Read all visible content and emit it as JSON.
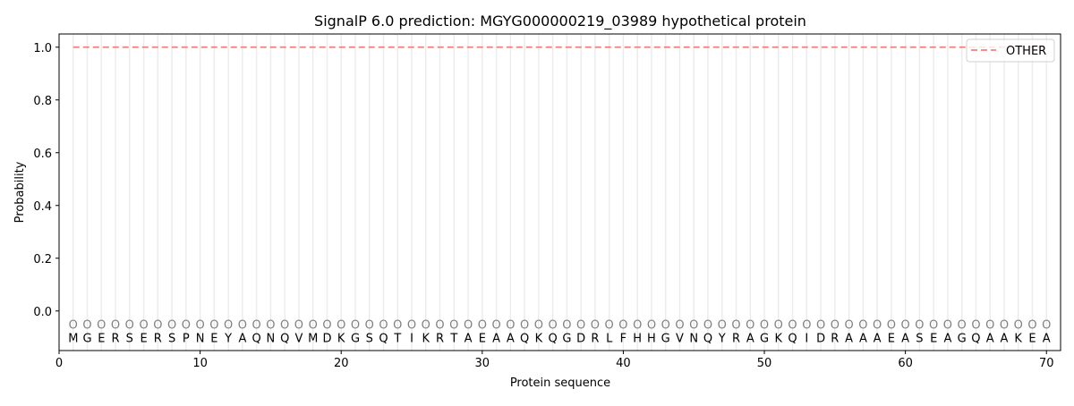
{
  "chart_data": {
    "type": "line",
    "title": "SignalP 6.0 prediction: MGYG000000219_03989 hypothetical protein",
    "xlabel": "Protein sequence",
    "ylabel": "Probability",
    "xlim": [
      0,
      71
    ],
    "ylim": [
      -0.15,
      1.05
    ],
    "xticks": [
      0,
      10,
      20,
      30,
      40,
      50,
      60,
      70
    ],
    "yticks": [
      "0.0",
      "0.2",
      "0.4",
      "0.6",
      "0.8",
      "1.0"
    ],
    "grid": "vertical at each residue",
    "legend_placement": "upper-right",
    "sequence": "MGERSERSPNEYAQNQVMDKGSQTIKRTAEAAQKQGDRLFHHGVNQYRAGKQIDRAAAEASEAGQAAKEA",
    "residue_labels": "O",
    "series": [
      {
        "name": "OTHER",
        "color": "#f08080",
        "style": "dashed",
        "x_range": [
          1,
          70
        ],
        "value": 1.0
      }
    ]
  }
}
